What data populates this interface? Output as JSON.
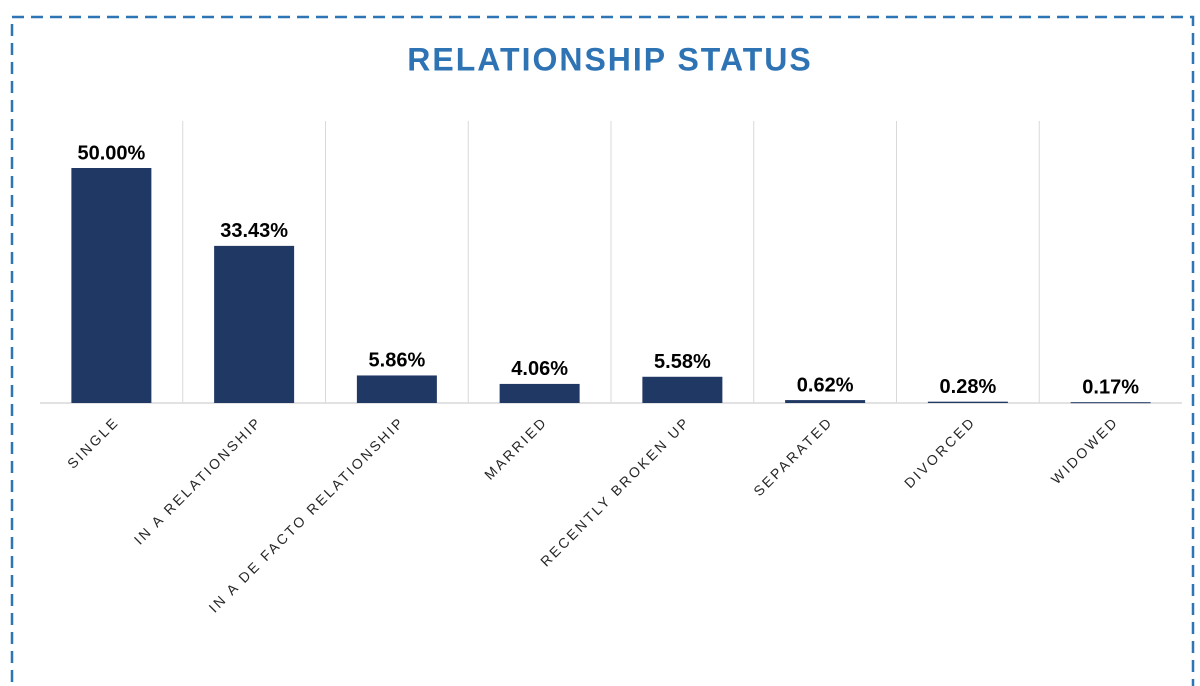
{
  "chart_data": {
    "type": "bar",
    "title": "RELATIONSHIP STATUS",
    "categories": [
      "SINGLE",
      "IN A RELATIONSHIP",
      "IN A DE FACTO RELATIONSHIP",
      "MARRIED",
      "RECENTLY BROKEN UP",
      "SEPARATED",
      "DIVORCED",
      "WIDOWED"
    ],
    "values": [
      50,
      33.43,
      5.86,
      4.06,
      5.58,
      0.62,
      0.28,
      0.17
    ],
    "value_labels": [
      "50.00%",
      "33.43%",
      "5.86%",
      "4.06%",
      "5.58%",
      "0.62%",
      "0.28%",
      "0.17%"
    ],
    "color": "#203864",
    "ylim": [
      0,
      60
    ]
  }
}
